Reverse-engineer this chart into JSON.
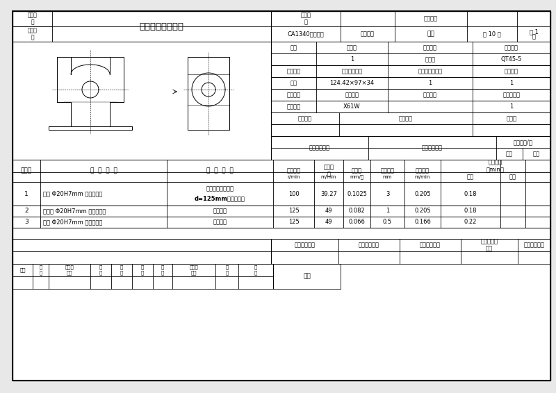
{
  "title": "机械加工工序卡片",
  "product_model_label": "产品型\n号",
  "product_name_label": "产品名\n称",
  "part_drawing_label": "零件图号",
  "product_name_value": "CA1340自动车床",
  "part_name_label": "零件名称",
  "part_name_value": "杠杆",
  "total_pages": "共 10 页",
  "page_label1": "第 1",
  "page_label2": "页",
  "workshop_label": "车间",
  "process_num_label": "工序号",
  "process_name_label": "工序名称",
  "material_label": "材料牌号",
  "process_num_value": "1",
  "process_name_value": "铣端面",
  "material_value": "QT45-5",
  "blank_type_label": "毛坯种类",
  "blank_size_label": "毛坯外形尺寸",
  "blank_qty_label": "每毛坯可制件数",
  "per_unit_qty_label": "每台件数",
  "blank_type_value": "铸件",
  "blank_size_value": "124.42×97×34",
  "blank_qty_value": "1",
  "per_unit_qty_value": "1",
  "equipment_name_label": "设备名称",
  "equipment_model_label": "设备型号",
  "equipment_num_label": "设备编号",
  "concurrent_label": "同时工件数",
  "equipment_name_value": "万能铣床",
  "equipment_model_value": "X61W",
  "concurrent_value": "1",
  "fixture_num_label": "夹具编号",
  "fixture_name_label": "夹具名称",
  "coolant_label": "切削液",
  "tool_num_label": "工位器具编号",
  "tool_name_label": "工位器具名称",
  "process_time_label": "工序工时/分",
  "prep_time_label": "准终",
  "unit_time_label": "单件",
  "step_h1": "工步号",
  "step_h2": "工  步  内  容",
  "step_h3": "工  艺  设  备",
  "step_h4": "主轴转速",
  "step_h5": "切削速\n度",
  "step_h6": "进给量",
  "step_h7": "切削深度",
  "step_h8": "进给速度",
  "step_h9": "工步工时\n（min）",
  "step_u4": "r/min",
  "step_u5": "m/min",
  "step_u6": "mm/齿",
  "step_u7": "mm",
  "step_u8": "m/min",
  "step_u9a": "机动",
  "step_u9b": "辅助",
  "steps": [
    {
      "num": "1",
      "content": "粗铣 Φ20H7mm 孔的两端面",
      "equip1": "直齿三面刃铣刀，",
      "equip2": "d=125mm，专用夹具",
      "spindle": "100",
      "cut_speed": "39.27",
      "feed": "0.1025",
      "depth": "3",
      "feed_rate": "0.205",
      "machine_time": "0.18",
      "aux_time": ""
    },
    {
      "num": "2",
      "content": "半精铣 Φ20H7mm 孔的两端面",
      "equip1": "专用夹具",
      "equip2": "",
      "spindle": "125",
      "cut_speed": "49",
      "feed": "0.082",
      "depth": "1",
      "feed_rate": "0.205",
      "machine_time": "0.18",
      "aux_time": ""
    },
    {
      "num": "3",
      "content": "精铣 Φ20H7mm 孔的两端面",
      "equip1": "专用夹具",
      "equip2": "",
      "spindle": "125",
      "cut_speed": "49",
      "feed": "0.066",
      "depth": "0.5",
      "feed_rate": "0.166",
      "machine_time": "0.22",
      "aux_time": ""
    }
  ],
  "sign_labels": [
    "设计（日期）",
    "校对（日期）",
    "审核（日期）",
    "标准化（日\n期）",
    "会签（日期）"
  ],
  "change_labels": [
    "标记",
    "处\n数",
    "更改文\n件号",
    "签\n字",
    "日\n期",
    "标\n记",
    "处\n数",
    "更改文\n件号",
    "签\n字",
    "日\n期"
  ],
  "date_label": "日期",
  "bg_color": "#ffffff",
  "outer_bg": "#e8e8e8",
  "line_color": "#000000",
  "fontsize": 6.5,
  "title_fontsize": 9.5
}
